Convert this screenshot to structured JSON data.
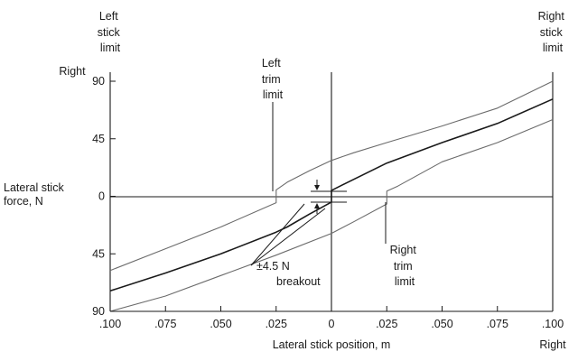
{
  "chart_data": {
    "type": "line",
    "xlabel": "Lateral stick position, m",
    "ylabel": [
      "Lateral stick",
      "force, N"
    ],
    "xlim": [
      -0.1,
      0.1
    ],
    "ylim": [
      -90,
      90
    ],
    "x_ticks": [
      {
        "value": -0.1,
        "label": ".100"
      },
      {
        "value": -0.075,
        "label": ".075"
      },
      {
        "value": -0.05,
        "label": ".050"
      },
      {
        "value": -0.025,
        "label": ".025"
      },
      {
        "value": 0,
        "label": "0"
      },
      {
        "value": 0.025,
        "label": ".025"
      },
      {
        "value": 0.05,
        "label": ".050"
      },
      {
        "value": 0.075,
        "label": ".075"
      },
      {
        "value": 0.1,
        "label": ".100"
      }
    ],
    "y_ticks": [
      {
        "value": 90,
        "label": "90"
      },
      {
        "value": 45,
        "label": "45"
      },
      {
        "value": 0,
        "label": "0"
      },
      {
        "value": -45,
        "label": "45"
      },
      {
        "value": -90,
        "label": "90"
      }
    ],
    "x_right_label": "Right",
    "y_top_label": "Right",
    "series": [
      {
        "role": "upper-boundary",
        "color": "#6b6b6b",
        "points": [
          [
            -0.1,
            -58
          ],
          [
            -0.075,
            -41
          ],
          [
            -0.05,
            -24
          ],
          [
            -0.025,
            -5
          ],
          [
            -0.025,
            5
          ],
          [
            -0.02,
            11
          ],
          [
            -0.01,
            20
          ],
          [
            0,
            28
          ],
          [
            0.01,
            34
          ],
          [
            0.025,
            42
          ],
          [
            0.05,
            55
          ],
          [
            0.075,
            69
          ],
          [
            0.1,
            90
          ]
        ]
      },
      {
        "role": "center",
        "color": "#1a1a1a",
        "points": [
          [
            -0.1,
            -74
          ],
          [
            -0.075,
            -60
          ],
          [
            -0.05,
            -45
          ],
          [
            -0.025,
            -28
          ],
          [
            -0.02,
            -24
          ],
          [
            -0.01,
            -14
          ],
          [
            0,
            -4.5
          ],
          [
            0,
            4.5
          ],
          [
            0.005,
            9
          ],
          [
            0.025,
            26
          ],
          [
            0.05,
            42
          ],
          [
            0.075,
            57
          ],
          [
            0.1,
            76
          ]
        ]
      },
      {
        "role": "lower-boundary",
        "color": "#6b6b6b",
        "points": [
          [
            -0.1,
            -90
          ],
          [
            -0.075,
            -78
          ],
          [
            -0.05,
            -62
          ],
          [
            -0.025,
            -46
          ],
          [
            0,
            -29
          ],
          [
            0.01,
            -20
          ],
          [
            0.025,
            -6
          ],
          [
            0.025,
            4
          ],
          [
            0.03,
            8
          ],
          [
            0.05,
            27
          ],
          [
            0.075,
            42
          ],
          [
            0.1,
            60
          ]
        ]
      }
    ],
    "annotations": [
      {
        "name": "left-stick-limit",
        "lines": [
          "Left",
          "stick",
          "limit"
        ]
      },
      {
        "name": "right-stick-limit",
        "lines": [
          "Right",
          "stick",
          "limit"
        ]
      },
      {
        "name": "left-trim-limit",
        "lines": [
          "Left",
          "trim",
          "limit"
        ]
      },
      {
        "name": "right-trim-limit",
        "lines": [
          "Right",
          "trim",
          "limit"
        ]
      },
      {
        "name": "breakout",
        "lines": [
          "±4.5 N",
          "breakout"
        ]
      }
    ]
  }
}
